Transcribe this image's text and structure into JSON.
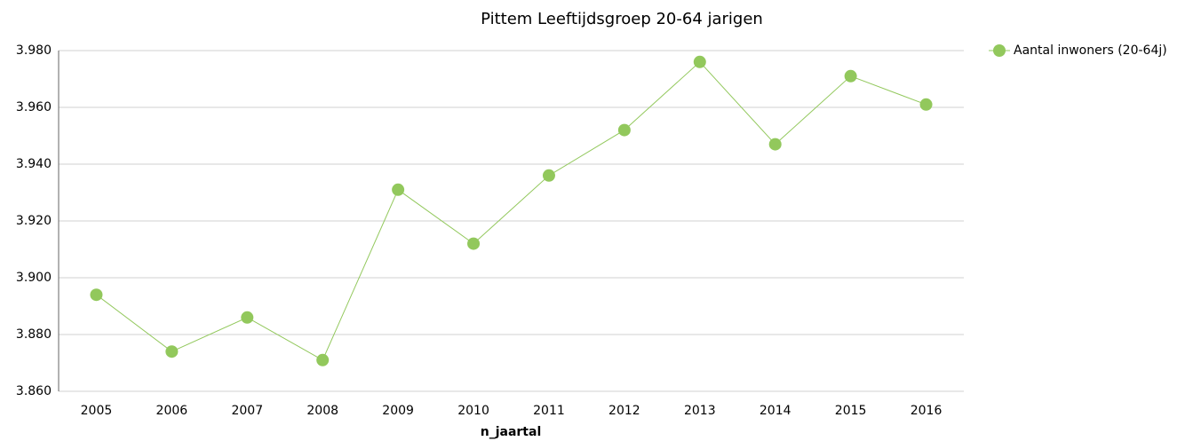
{
  "chart_data": {
    "type": "line",
    "title": "Pittem  Leeftijdsgroep 20-64 jarigen",
    "xlabel": "n_jaartal",
    "categories": [
      "2005",
      "2006",
      "2007",
      "2008",
      "2009",
      "2010",
      "2011",
      "2012",
      "2013",
      "2014",
      "2015",
      "2016"
    ],
    "series": [
      {
        "name": "Aantal inwoners  (20-64j)",
        "color": "#92c85c",
        "values": [
          3894,
          3874,
          3886,
          3871,
          3931,
          3912,
          3936,
          3952,
          3976,
          3947,
          3971,
          3961
        ]
      }
    ],
    "ylim": [
      3860,
      3980
    ],
    "yticks": [
      {
        "value": 3860,
        "label": "3.860"
      },
      {
        "value": 3880,
        "label": "3.880"
      },
      {
        "value": 3900,
        "label": "3.900"
      },
      {
        "value": 3920,
        "label": "3.920"
      },
      {
        "value": 3940,
        "label": "3.940"
      },
      {
        "value": 3960,
        "label": "3.960"
      },
      {
        "value": 3980,
        "label": "3.980"
      }
    ],
    "grid": true,
    "legend": "right"
  }
}
